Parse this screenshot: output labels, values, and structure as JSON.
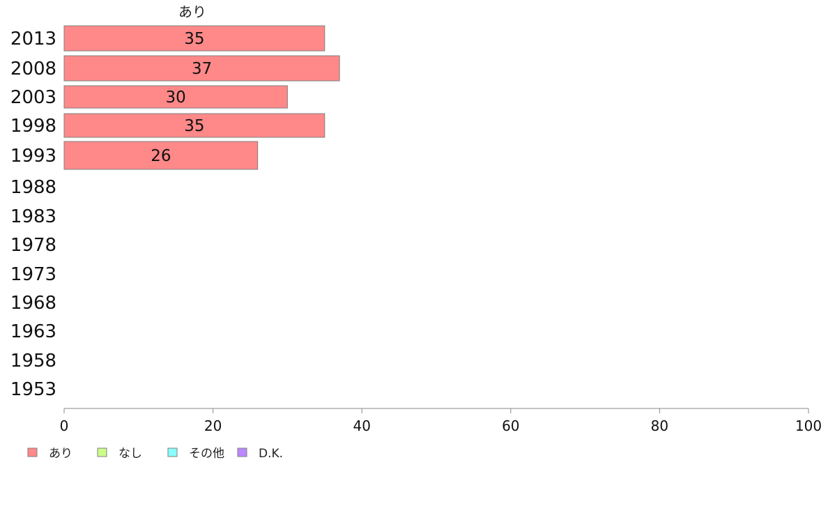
{
  "chart_data": {
    "type": "bar",
    "orientation": "horizontal",
    "stacked": true,
    "categories": [
      "2013",
      "2008",
      "2003",
      "1998",
      "1993",
      "1988",
      "1983",
      "1978",
      "1973",
      "1968",
      "1963",
      "1958",
      "1953"
    ],
    "series": [
      {
        "name": "あり",
        "color": "#ff8888",
        "values": [
          35,
          37,
          30,
          35,
          26,
          null,
          null,
          null,
          null,
          null,
          null,
          null,
          null
        ]
      },
      {
        "name": "なし",
        "color": "#ccff88",
        "values": [
          null,
          null,
          null,
          null,
          null,
          null,
          null,
          null,
          null,
          null,
          null,
          null,
          null
        ]
      },
      {
        "name": "その他",
        "color": "#88ffff",
        "values": [
          null,
          null,
          null,
          null,
          null,
          null,
          null,
          null,
          null,
          null,
          null,
          null,
          null
        ]
      },
      {
        "name": "D.K.",
        "color": "#bb88ff",
        "values": [
          null,
          null,
          null,
          null,
          null,
          null,
          null,
          null,
          null,
          null,
          null,
          null,
          null
        ]
      }
    ],
    "series_header": "あり",
    "xlim": [
      0,
      100
    ],
    "xticks": [
      "0",
      "20",
      "40",
      "60",
      "80",
      "100"
    ],
    "grid": false,
    "legend_position": "bottom-left"
  }
}
